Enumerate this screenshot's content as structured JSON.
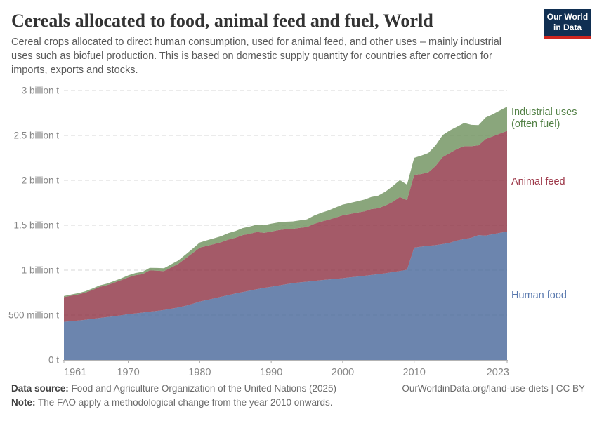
{
  "header": {
    "title": "Cereals allocated to food, animal feed and fuel, World",
    "subtitle": "Cereal crops allocated to direct human consumption, used for animal feed, and other uses – mainly industrial uses such as biofuel production. This is based on domestic supply quantity for countries after correction for imports, exports and stocks.",
    "logo": {
      "line1": "Our World",
      "line2": "in Data",
      "bg_color": "#102f52",
      "accent_color": "#ce261f"
    }
  },
  "chart_data": {
    "type": "area",
    "stacked": true,
    "title": "Cereals allocated to food, animal feed and fuel, World",
    "unit": "million tonnes",
    "grid": "dashed",
    "legend_position": "right",
    "ylim": [
      0,
      3000
    ],
    "x": [
      1961,
      1962,
      1963,
      1964,
      1965,
      1966,
      1967,
      1968,
      1969,
      1970,
      1971,
      1972,
      1973,
      1974,
      1975,
      1976,
      1977,
      1978,
      1979,
      1980,
      1981,
      1982,
      1983,
      1984,
      1985,
      1986,
      1987,
      1988,
      1989,
      1990,
      1991,
      1992,
      1993,
      1994,
      1995,
      1996,
      1997,
      1998,
      1999,
      2000,
      2001,
      2002,
      2003,
      2004,
      2005,
      2006,
      2007,
      2008,
      2009,
      2010,
      2011,
      2012,
      2013,
      2014,
      2015,
      2016,
      2017,
      2018,
      2019,
      2020,
      2021,
      2022,
      2023
    ],
    "series": [
      {
        "name": "Human food",
        "legend_lines": [
          "Human food"
        ],
        "fill_color": "#4c6a9c",
        "label_color": "#5878ae",
        "values": [
          425,
          432,
          440,
          448,
          458,
          468,
          477,
          487,
          498,
          510,
          519,
          527,
          538,
          546,
          556,
          570,
          585,
          602,
          625,
          650,
          668,
          686,
          704,
          722,
          740,
          756,
          772,
          788,
          802,
          815,
          828,
          842,
          855,
          864,
          871,
          880,
          888,
          895,
          902,
          910,
          920,
          928,
          937,
          946,
          955,
          966,
          978,
          990,
          1005,
          1250,
          1262,
          1270,
          1278,
          1290,
          1305,
          1330,
          1345,
          1360,
          1390,
          1385,
          1400,
          1415,
          1430
        ]
      },
      {
        "name": "Animal feed",
        "legend_lines": [
          "Animal feed"
        ],
        "fill_color": "#903647",
        "label_color": "#9c3647",
        "values": [
          275,
          283,
          290,
          302,
          322,
          345,
          355,
          372,
          390,
          410,
          425,
          428,
          460,
          448,
          433,
          460,
          485,
          528,
          565,
          600,
          602,
          604,
          606,
          618,
          620,
          634,
          633,
          637,
          613,
          615,
          617,
          613,
          605,
          606,
          609,
          635,
          652,
          665,
          683,
          700,
          705,
          712,
          718,
          734,
          735,
          754,
          782,
          825,
          775,
          810,
          808,
          820,
          882,
          970,
          1000,
          1020,
          1035,
          1020,
          1000,
          1075,
          1090,
          1105,
          1120
        ]
      },
      {
        "name": "Industrial uses (often fuel)",
        "legend_lines": [
          "Industrial uses",
          "(often fuel)"
        ],
        "fill_color": "#70935f",
        "label_color": "#538146",
        "values": [
          12,
          13,
          14,
          15,
          16,
          17,
          18,
          19,
          20,
          22,
          24,
          26,
          28,
          30,
          32,
          35,
          38,
          42,
          48,
          58,
          62,
          65,
          68,
          72,
          75,
          78,
          80,
          82,
          84,
          88,
          86,
          84,
          82,
          84,
          86,
          92,
          98,
          104,
          112,
          120,
          122,
          126,
          130,
          135,
          140,
          155,
          175,
          188,
          172,
          190,
          205,
          215,
          230,
          245,
          252,
          248,
          258,
          238,
          225,
          240,
          245,
          258,
          270
        ]
      }
    ],
    "yticks": [
      {
        "value": 0,
        "label": "0 t"
      },
      {
        "value": 500,
        "label": "500 million t"
      },
      {
        "value": 1000,
        "label": "1 billion t"
      },
      {
        "value": 1500,
        "label": "1.5 billion t"
      },
      {
        "value": 2000,
        "label": "2 billion t"
      },
      {
        "value": 2500,
        "label": "2.5 billion t"
      },
      {
        "value": 3000,
        "label": "3 billion t"
      }
    ],
    "xticks": [
      1961,
      1970,
      1980,
      1990,
      2000,
      2010,
      2023
    ]
  },
  "footer": {
    "source_label": "Data source:",
    "source_text": " Food and Agriculture Organization of the United Nations (2025)",
    "note_label": "Note:",
    "note_text": " The FAO apply a methodological change from the year 2010 onwards.",
    "credit": "OurWorldinData.org/land-use-diets | CC BY"
  }
}
